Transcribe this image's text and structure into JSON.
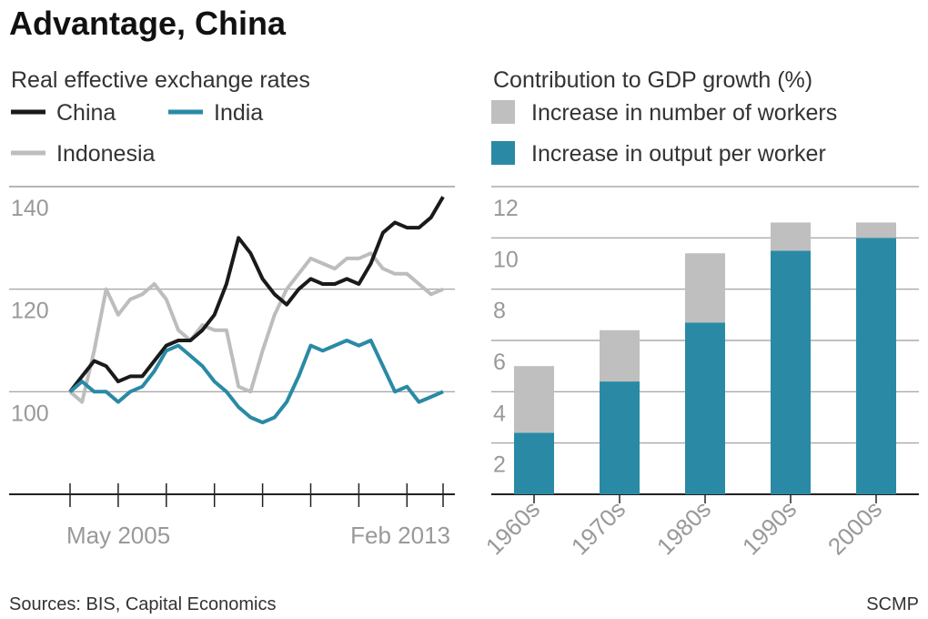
{
  "title": "Advantage, China",
  "source": "Sources: BIS, Capital Economics",
  "credit": "SCMP",
  "chart_data": [
    {
      "type": "line",
      "title": "Real effective exchange rates",
      "categories": [
        "May 2005",
        null,
        null,
        null,
        null,
        null,
        null,
        null,
        null,
        null,
        null,
        null,
        null,
        null,
        null,
        null,
        null,
        null,
        null,
        null,
        null,
        null,
        null,
        null,
        null,
        null,
        null,
        null,
        null,
        null,
        null,
        "Feb 2013"
      ],
      "series": [
        {
          "name": "China",
          "color": "#1a1a1a",
          "values": [
            100,
            103,
            106,
            105,
            102,
            103,
            103,
            106,
            109,
            110,
            110,
            112,
            115,
            121,
            130,
            127,
            122,
            119,
            117,
            120,
            122,
            121,
            121,
            122,
            121,
            125,
            131,
            133,
            132,
            132,
            134,
            138
          ]
        },
        {
          "name": "India",
          "color": "#2a8aa5",
          "values": [
            100,
            102,
            100,
            100,
            98,
            100,
            101,
            104,
            108,
            109,
            107,
            105,
            102,
            100,
            97,
            95,
            94,
            95,
            98,
            103,
            109,
            108,
            109,
            110,
            109,
            110,
            105,
            100,
            101,
            98,
            99,
            100
          ]
        },
        {
          "name": "Indonesia",
          "color": "#bdbdbd",
          "values": [
            100,
            98,
            108,
            120,
            115,
            118,
            119,
            121,
            118,
            112,
            110,
            113,
            112,
            112,
            101,
            100,
            108,
            115,
            120,
            123,
            126,
            125,
            124,
            126,
            126,
            127,
            124,
            123,
            123,
            121,
            119,
            120
          ]
        }
      ],
      "ylim": [
        80,
        140
      ],
      "yticks": [
        100,
        120,
        140
      ],
      "grid": true
    },
    {
      "type": "stacked_bar",
      "title": "Contribution to GDP growth (%)",
      "categories": [
        "1960s",
        "1970s",
        "1980s",
        "1990s",
        "2000s"
      ],
      "series": [
        {
          "name": "Increase in number of workers",
          "color": "#bfbfbf",
          "values": [
            2.6,
            2.0,
            2.7,
            1.1,
            0.6
          ]
        },
        {
          "name": "Increase in output per worker",
          "color": "#2a8aa5",
          "values": [
            2.4,
            4.4,
            6.7,
            9.5,
            10.0
          ]
        }
      ],
      "ylim": [
        0,
        12
      ],
      "yticks": [
        2,
        4,
        6,
        8,
        10,
        12
      ],
      "grid": true
    }
  ]
}
